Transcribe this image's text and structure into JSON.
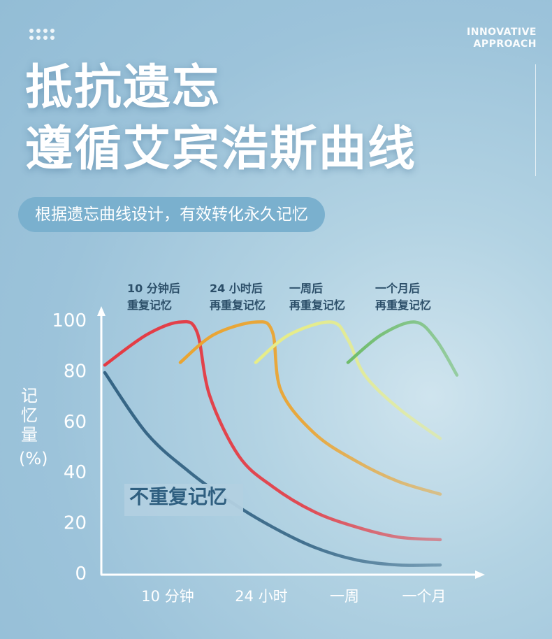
{
  "header": {
    "brand_line1": "INNOVATIVE",
    "brand_line2": "APPROACH",
    "title_line1": "抵抗遗忘",
    "title_line2": "遵循艾宾浩斯曲线",
    "subtitle": "根据遗忘曲线设计，有效转化永久记忆"
  },
  "colors": {
    "review_1": "#e8323a",
    "review_2": "#f0a020",
    "review_3": "#eef07a",
    "review_4": "#4fb03a",
    "no_review": "#2f5f80",
    "axis": "#ffffff"
  },
  "chart_data": {
    "type": "line",
    "ylabel": "记忆量(%)",
    "ylim": [
      0,
      100
    ],
    "yticks": [
      "100",
      "80",
      "60",
      "40",
      "20",
      "0"
    ],
    "xticks": [
      "10 分钟",
      "24 小时",
      "一周",
      "一个月"
    ],
    "annotations": [
      {
        "line1": "10 分钟后",
        "line2": "重复记忆"
      },
      {
        "line1": "24 小时后",
        "line2": "再重复记忆"
      },
      {
        "line1": "一周后",
        "line2": "再重复记忆"
      },
      {
        "line1": "一个月后",
        "line2": "再重复记忆"
      }
    ],
    "no_review_label": "不重复记忆",
    "series": [
      {
        "name": "不重复记忆",
        "color": "#2f5f80",
        "points": [
          [
            0,
            79
          ],
          [
            0.5,
            55
          ],
          [
            1,
            40
          ],
          [
            1.5,
            28
          ],
          [
            2,
            18
          ],
          [
            2.5,
            10
          ],
          [
            3,
            5
          ],
          [
            3.5,
            3
          ],
          [
            4,
            3
          ]
        ]
      },
      {
        "color": "#e8323a",
        "points": [
          [
            0,
            82
          ],
          [
            0.5,
            94
          ],
          [
            0.9,
            99
          ],
          [
            1.1,
            95
          ],
          [
            1.25,
            70
          ],
          [
            1.6,
            46
          ],
          [
            2,
            34
          ],
          [
            2.5,
            24
          ],
          [
            3,
            18
          ],
          [
            3.5,
            14
          ],
          [
            4,
            13
          ]
        ]
      },
      {
        "color": "#f0a020",
        "points": [
          [
            0.9,
            83
          ],
          [
            1.3,
            94
          ],
          [
            1.8,
            99
          ],
          [
            2.0,
            95
          ],
          [
            2.1,
            72
          ],
          [
            2.5,
            55
          ],
          [
            3,
            44
          ],
          [
            3.5,
            36
          ],
          [
            4,
            31
          ]
        ]
      },
      {
        "color": "#eef07a",
        "points": [
          [
            1.8,
            83
          ],
          [
            2.2,
            94
          ],
          [
            2.7,
            99
          ],
          [
            2.9,
            92
          ],
          [
            3.1,
            78
          ],
          [
            3.5,
            65
          ],
          [
            4,
            53
          ]
        ]
      },
      {
        "color": "#4fb03a",
        "points": [
          [
            2.9,
            83
          ],
          [
            3.3,
            94
          ],
          [
            3.7,
            99
          ],
          [
            3.95,
            92
          ],
          [
            4.2,
            78
          ]
        ]
      }
    ]
  }
}
